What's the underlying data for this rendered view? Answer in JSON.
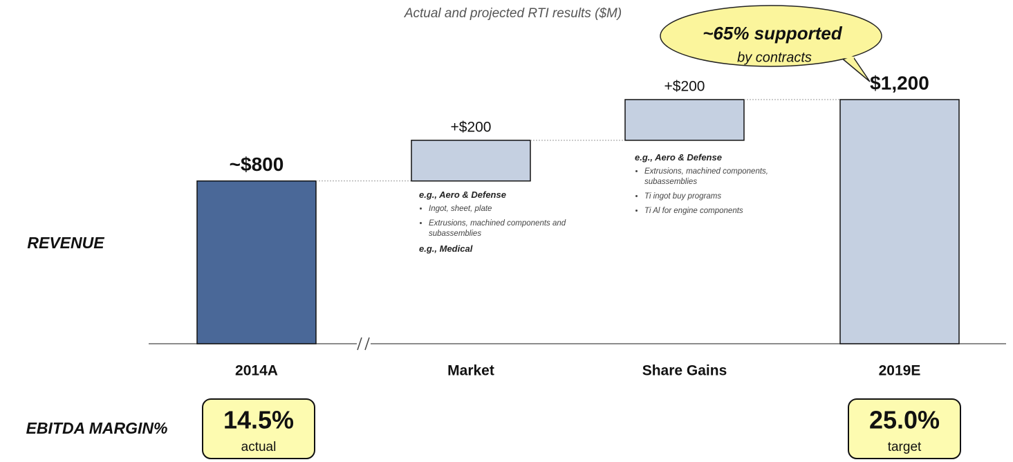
{
  "chart_data": {
    "type": "waterfall",
    "subtitle": "Actual and projected RTI results ($M)",
    "row_label": "REVENUE",
    "categories": [
      "2014A",
      "Market",
      "Share Gains",
      "2019E"
    ],
    "measures": [
      "absolute",
      "relative",
      "relative",
      "total"
    ],
    "values": [
      800,
      200,
      200,
      1200
    ],
    "value_labels": [
      "~$800",
      "+$200",
      "+$200",
      "$1,200"
    ],
    "colors": [
      "#4a6898",
      "#c5d0e1",
      "#c5d0e1",
      "#c5d0e1"
    ],
    "callout": {
      "headline": "~65% supported",
      "text": "by contracts"
    },
    "annotations": {
      "Market": [
        {
          "heading": "e.g., Aero & Defense",
          "bullets": [
            "Ingot, sheet, plate",
            "Extrusions, machined components and subassemblies"
          ]
        },
        {
          "heading": "e.g., Medical"
        }
      ],
      "Share Gains": [
        {
          "heading": "e.g., Aero & Defense",
          "bullets": [
            "Extrusions, machined components, subassemblies",
            "Ti ingot buy programs",
            "Ti Al for engine components"
          ]
        }
      ]
    },
    "margin_label": "EBITDA MARGIN%",
    "margins": [
      {
        "category": "2014A",
        "label": "14.5%",
        "note": "actual"
      },
      {
        "category": "2019E",
        "label": "25.0%",
        "note": "target"
      }
    ]
  }
}
